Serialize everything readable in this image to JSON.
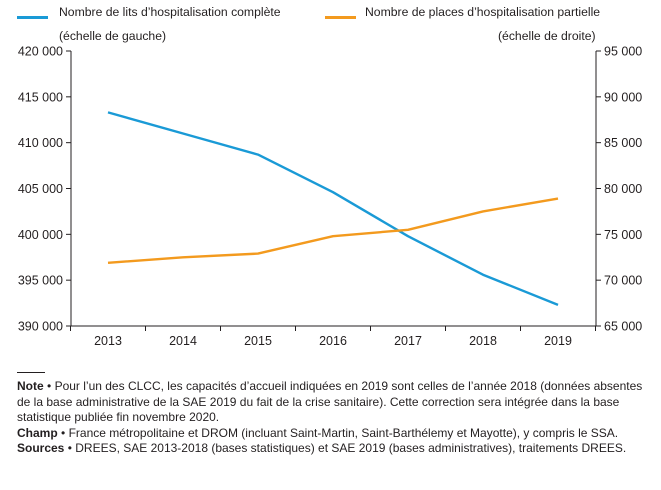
{
  "legend": {
    "series1_label": "Nombre de lits d’hospitalisation complète",
    "series1_sub": "(échelle de gauche)",
    "series2_label": "Nombre de places d’hospitalisation partielle",
    "series2_sub": "(échelle de droite)"
  },
  "notes": {
    "note_label": "Note",
    "note_text": "Pour l’un des CLCC, les capacités d’accueil indiquées en 2019 sont celles de l’année 2018 (données absentes de la base administrative de la SAE 2019 du fait de la crise sanitaire). Cette correction sera intégrée dans la base statistique publiée fin novembre 2020.",
    "champ_label": "Champ",
    "champ_text": "France métropolitaine et DROM (incluant Saint-Martin, Saint-Barthélemy et Mayotte), y compris le SSA.",
    "sources_label": "Sources",
    "sources_text": "DREES, SAE 2013-2018 (bases statistiques) et SAE 2019 (bases administratives), traitements DREES.",
    "bullet": "•"
  },
  "chart_data": {
    "type": "line",
    "categories": [
      "2013",
      "2014",
      "2015",
      "2016",
      "2017",
      "2018",
      "2019"
    ],
    "series": [
      {
        "name": "Nombre de lits d’hospitalisation complète",
        "axis": "left",
        "color": "#1a9ad6",
        "values": [
          413300,
          411000,
          408700,
          404600,
          399800,
          395600,
          392300
        ]
      },
      {
        "name": "Nombre de places d’hospitalisation partielle",
        "axis": "right",
        "color": "#f39a1e",
        "values": [
          71900,
          72500,
          72900,
          74800,
          75500,
          77500,
          78900
        ]
      }
    ],
    "y_left": {
      "min": 390000,
      "max": 420000,
      "ticks": [
        "390 000",
        "395 000",
        "400 000",
        "405 000",
        "410 000",
        "415 000",
        "420 000"
      ]
    },
    "y_right": {
      "min": 65000,
      "max": 95000,
      "ticks": [
        "65 000",
        "70 000",
        "75 000",
        "80 000",
        "85 000",
        "90 000",
        "95 000"
      ]
    },
    "grid": false
  }
}
